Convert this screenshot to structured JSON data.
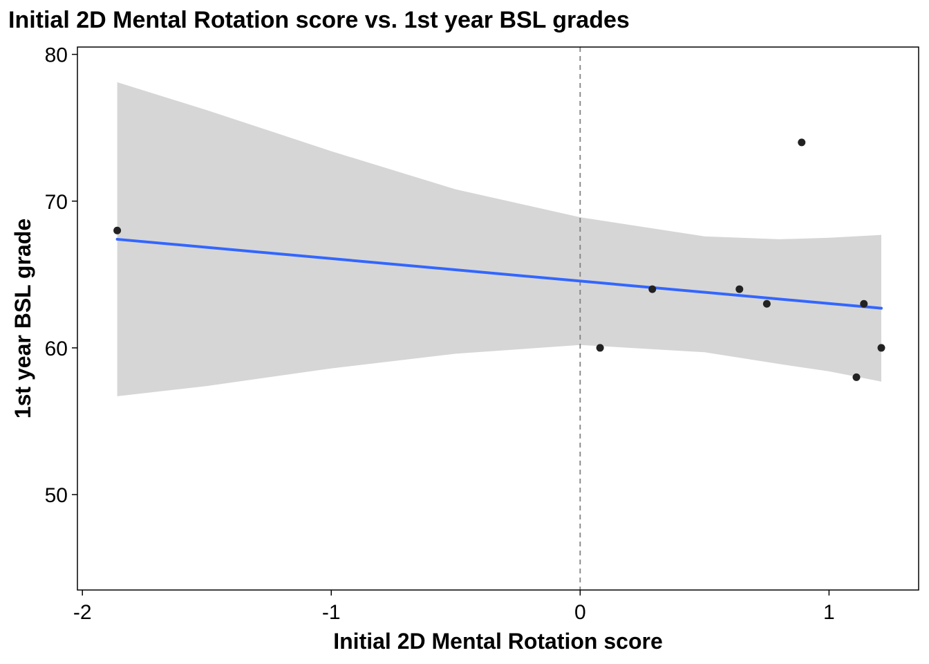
{
  "chart_data": {
    "type": "scatter",
    "title": "Initial 2D Mental Rotation score vs. 1st year BSL grades",
    "xlabel": "Initial 2D Mental Rotation score",
    "ylabel": "1st year BSL grade",
    "xlim": [
      -2.02,
      1.36
    ],
    "ylim": [
      43.5,
      80.5
    ],
    "x_ticks": [
      -2,
      -1,
      0,
      1
    ],
    "x_tick_labels": [
      "-2",
      "-1",
      "0",
      "1"
    ],
    "y_ticks": [
      50,
      60,
      70,
      80
    ],
    "y_tick_labels": [
      "50",
      "60",
      "70",
      "80"
    ],
    "grid": false,
    "reference_line": {
      "axis": "x",
      "value": 0,
      "style": "dashed",
      "color": "#808080"
    },
    "points": [
      {
        "x": -1.86,
        "y": 68
      },
      {
        "x": 0.08,
        "y": 60
      },
      {
        "x": 0.29,
        "y": 64
      },
      {
        "x": 0.64,
        "y": 64
      },
      {
        "x": 0.75,
        "y": 63
      },
      {
        "x": 0.89,
        "y": 74
      },
      {
        "x": 1.11,
        "y": 58
      },
      {
        "x": 1.14,
        "y": 63
      },
      {
        "x": 1.21,
        "y": 60
      }
    ],
    "fit_line": {
      "method": "linear",
      "color": "#3366FF",
      "x": [
        -1.86,
        1.21
      ],
      "y": [
        67.4,
        62.7
      ]
    },
    "confidence_band": {
      "color": "#d6d6d6",
      "x": [
        -1.86,
        -1.5,
        -1.0,
        -0.5,
        0.0,
        0.5,
        0.8,
        1.0,
        1.21
      ],
      "upper": [
        78.1,
        76.2,
        73.4,
        70.8,
        68.9,
        67.6,
        67.4,
        67.5,
        67.7
      ],
      "lower": [
        56.7,
        57.4,
        58.6,
        59.6,
        60.2,
        59.7,
        58.9,
        58.4,
        57.7
      ]
    },
    "colors": {
      "point": "#222222",
      "fit": "#3366FF",
      "band": "#d6d6d6",
      "axis": "#000000"
    }
  }
}
